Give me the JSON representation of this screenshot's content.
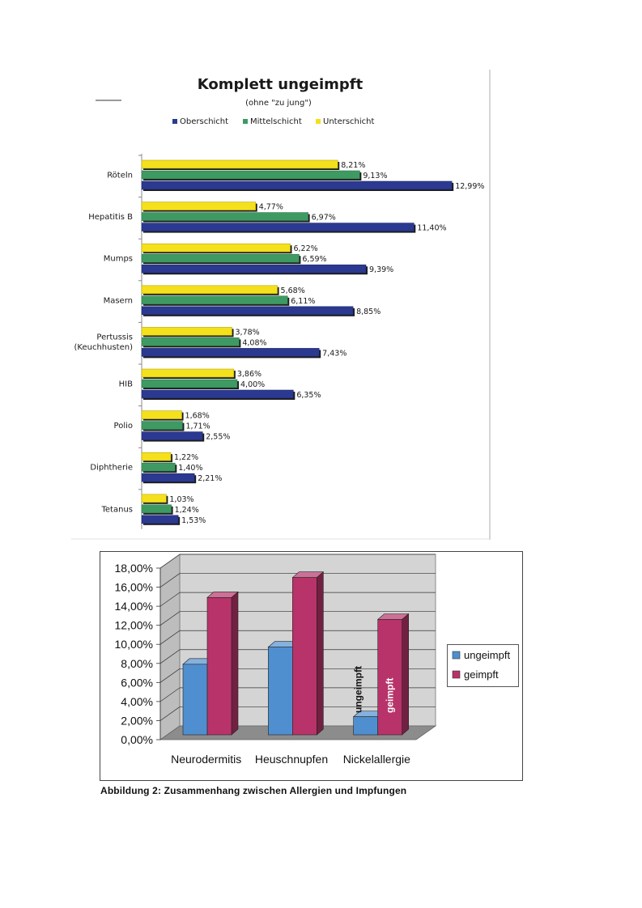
{
  "chart_data": [
    {
      "type": "bar",
      "orientation": "horizontal",
      "title": "Komplett ungeimpft",
      "subtitle": "(ohne \"zu jung\")",
      "categories": [
        "Röteln",
        "Hepatitis B",
        "Mumps",
        "Masern",
        "Pertussis (Keuchhusten)",
        "HIB",
        "Polio",
        "Diphtherie",
        "Tetanus"
      ],
      "category_lines": [
        [
          "Röteln"
        ],
        [
          "Hepatitis B"
        ],
        [
          "Mumps"
        ],
        [
          "Masern"
        ],
        [
          "Pertussis",
          "(Keuchhusten)"
        ],
        [
          "HIB"
        ],
        [
          "Polio"
        ],
        [
          "Diphtherie"
        ],
        [
          "Tetanus"
        ]
      ],
      "series": [
        {
          "name": "Unterschicht",
          "color": "#f4e01c",
          "values": [
            8.21,
            4.77,
            6.22,
            5.68,
            3.78,
            3.86,
            1.68,
            1.22,
            1.03
          ],
          "labels": [
            "8,21%",
            "4,77%",
            "6,22%",
            "5,68%",
            "3,78%",
            "3,86%",
            "1,68%",
            "1,22%",
            "1,03%"
          ]
        },
        {
          "name": "Mittelschicht",
          "color": "#3e9a62",
          "values": [
            9.13,
            6.97,
            6.59,
            6.11,
            4.08,
            4.0,
            1.71,
            1.4,
            1.24
          ],
          "labels": [
            "9,13%",
            "6,97%",
            "6,59%",
            "6,11%",
            "4,08%",
            "4,00%",
            "1,71%",
            "1,40%",
            "1,24%"
          ]
        },
        {
          "name": "Oberschicht",
          "color": "#2b3990",
          "values": [
            12.99,
            11.4,
            9.39,
            8.85,
            7.43,
            6.35,
            2.55,
            2.21,
            1.53
          ],
          "labels": [
            "12,99%",
            "11,40%",
            "9,39%",
            "8,85%",
            "7,43%",
            "6,35%",
            "2,55%",
            "2,21%",
            "1,53%"
          ]
        }
      ],
      "legend_order": [
        "Oberschicht",
        "Mittelschicht",
        "Unterschicht"
      ],
      "legend_position": "top",
      "xlim": [
        0,
        14
      ],
      "grid": false
    },
    {
      "type": "bar",
      "style": "3d-clustered-column",
      "title": "",
      "categories": [
        "Neurodermitis",
        "Heuschnupfen",
        "Nickelallergie"
      ],
      "series": [
        {
          "name": "ungeimpft",
          "color": "#4f8fd0",
          "values": [
            7.4,
            9.2,
            1.9
          ]
        },
        {
          "name": "geimpft",
          "color": "#b8336a",
          "values": [
            14.4,
            16.5,
            12.1
          ]
        }
      ],
      "ylim": [
        0,
        18
      ],
      "yticks": [
        "0,00%",
        "2,00%",
        "4,00%",
        "6,00%",
        "8,00%",
        "10,00%",
        "12,00%",
        "14,00%",
        "16,00%",
        "18,00%"
      ],
      "annotations": [
        "ungeimpft",
        "geimpft"
      ],
      "legend_position": "right",
      "grid": true
    }
  ],
  "caption": "Abbildung 2: Zusammenhang zwischen Allergien und Impfungen"
}
